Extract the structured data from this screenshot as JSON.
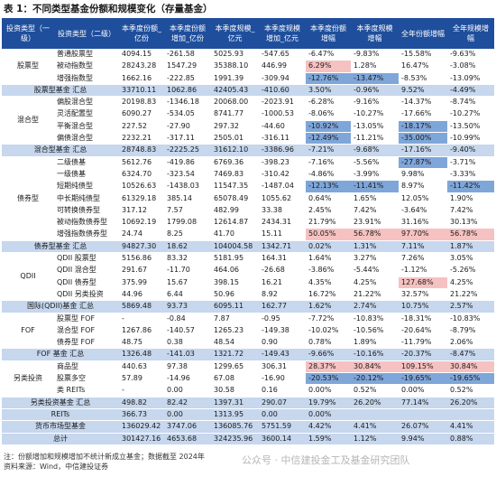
{
  "title": "表 1：不同类型基金份额和规模变化（存量基金）",
  "headers": [
    "投资类型（一级）",
    "投资类型（二级）",
    "本季度份额_亿份",
    "本季度份额增加_亿份",
    "本季度规模_亿元",
    "本季度规模增加_亿元",
    "本季度份额增幅",
    "本季度规模增幅",
    "全年份额增幅",
    "全年规模增幅"
  ],
  "rows": [
    {
      "type": "data",
      "cat": "股票型",
      "sub": "普通股票型",
      "v": [
        "4094.15",
        "-261.58",
        "5025.93",
        "-547.65",
        "-6.47%",
        "-9.83%",
        "-15.58%",
        "-9.63%"
      ],
      "hl": [
        "",
        "",
        "",
        "",
        "",
        "",
        "",
        ""
      ]
    },
    {
      "type": "data",
      "cat": "",
      "sub": "被动指数型",
      "v": [
        "28243.28",
        "1547.29",
        "35388.10",
        "446.99",
        "6.29%",
        "1.28%",
        "16.47%",
        "-3.08%"
      ],
      "hl": [
        "",
        "",
        "",
        "",
        "pos",
        "",
        "",
        ""
      ]
    },
    {
      "type": "data",
      "cat": "",
      "sub": "增强指数型",
      "v": [
        "1662.16",
        "-222.85",
        "1991.39",
        "-309.94",
        "-12.76%",
        "-13.47%",
        "-8.53%",
        "-13.09%"
      ],
      "hl": [
        "",
        "",
        "",
        "",
        "neg",
        "neg",
        "",
        ""
      ]
    },
    {
      "type": "total",
      "cat": "股票型基金 汇总",
      "sub": "",
      "v": [
        "33710.11",
        "1062.86",
        "42405.43",
        "-410.60",
        "3.50%",
        "-0.96%",
        "9.52%",
        "-4.49%"
      ],
      "hl": [
        "",
        "",
        "",
        "",
        "",
        "",
        "b",
        "b"
      ]
    },
    {
      "type": "data",
      "cat": "混合型",
      "sub": "偏股混合型",
      "v": [
        "20198.83",
        "-1346.18",
        "20068.00",
        "-2023.91",
        "-6.28%",
        "-9.16%",
        "-14.37%",
        "-8.74%"
      ],
      "hl": [
        "",
        "",
        "",
        "",
        "",
        "",
        "",
        ""
      ]
    },
    {
      "type": "data",
      "cat": "",
      "sub": "灵活配置型",
      "v": [
        "6090.27",
        "-534.05",
        "8741.77",
        "-1000.53",
        "-8.06%",
        "-10.27%",
        "-17.66%",
        "-10.27%"
      ],
      "hl": [
        "",
        "",
        "",
        "",
        "",
        "",
        "",
        ""
      ]
    },
    {
      "type": "data",
      "cat": "",
      "sub": "平衡混合型",
      "v": [
        "227.52",
        "-27.90",
        "297.32",
        "-44.60",
        "-10.92%",
        "-13.05%",
        "-18.17%",
        "-13.50%"
      ],
      "hl": [
        "",
        "",
        "",
        "",
        "neg",
        "",
        "neg",
        ""
      ]
    },
    {
      "type": "data",
      "cat": "",
      "sub": "偏债混合型",
      "v": [
        "2232.21",
        "-317.11",
        "2505.01",
        "-316.11",
        "-12.49%",
        "-11.21%",
        "-35.00%",
        "-10.99%"
      ],
      "hl": [
        "",
        "",
        "",
        "",
        "neg",
        "",
        "neg",
        ""
      ]
    },
    {
      "type": "total",
      "cat": "混合型基金 汇总",
      "sub": "",
      "v": [
        "28748.83",
        "-2225.25",
        "31612.10",
        "-3386.96",
        "-7.21%",
        "-9.68%",
        "-17.16%",
        "-9.40%"
      ],
      "hl": [
        "",
        "",
        "",
        "",
        "",
        "",
        "b",
        "b"
      ]
    },
    {
      "type": "data",
      "cat": "债券型",
      "sub": "二级债基",
      "v": [
        "5612.76",
        "-419.86",
        "6769.36",
        "-398.23",
        "-7.16%",
        "-5.56%",
        "-27.87%",
        "-3.71%"
      ],
      "hl": [
        "",
        "",
        "",
        "",
        "",
        "",
        "neg",
        ""
      ]
    },
    {
      "type": "data",
      "cat": "",
      "sub": "一级债基",
      "v": [
        "6324.70",
        "-323.54",
        "7469.83",
        "-310.42",
        "-4.86%",
        "-3.99%",
        "9.98%",
        "-3.33%"
      ],
      "hl": [
        "",
        "",
        "",
        "",
        "",
        "",
        "",
        ""
      ]
    },
    {
      "type": "data",
      "cat": "",
      "sub": "短期纯债型",
      "v": [
        "10526.63",
        "-1438.03",
        "11547.35",
        "-1487.04",
        "-12.13%",
        "-11.41%",
        "8.97%",
        "-11.42%"
      ],
      "hl": [
        "",
        "",
        "",
        "",
        "neg",
        "neg",
        "",
        "neg"
      ]
    },
    {
      "type": "data",
      "cat": "",
      "sub": "中长期纯债型",
      "v": [
        "61329.18",
        "385.14",
        "65078.49",
        "1055.62",
        "0.64%",
        "1.65%",
        "12.05%",
        "1.90%"
      ],
      "hl": [
        "",
        "",
        "",
        "",
        "",
        "",
        "",
        ""
      ]
    },
    {
      "type": "data",
      "cat": "",
      "sub": "可转换债券型",
      "v": [
        "317.12",
        "7.57",
        "482.99",
        "33.38",
        "2.45%",
        "7.42%",
        "-3.64%",
        "7.42%"
      ],
      "hl": [
        "",
        "",
        "",
        "",
        "",
        "",
        "",
        ""
      ]
    },
    {
      "type": "data",
      "cat": "",
      "sub": "被动指数债券型",
      "v": [
        "10692.19",
        "1799.08",
        "12614.87",
        "2434.31",
        "21.79%",
        "23.91%",
        "31.16%",
        "30.13%"
      ],
      "hl": [
        "",
        "",
        "",
        "",
        "",
        "",
        "",
        ""
      ]
    },
    {
      "type": "data",
      "cat": "",
      "sub": "增强指数债券型",
      "v": [
        "24.74",
        "8.25",
        "41.70",
        "15.11",
        "50.05%",
        "56.78%",
        "97.70%",
        "56.78%"
      ],
      "hl": [
        "",
        "",
        "",
        "",
        "pos",
        "pos",
        "pos",
        "pos"
      ]
    },
    {
      "type": "total",
      "cat": "债券型基金 汇总",
      "sub": "",
      "v": [
        "94827.30",
        "18.62",
        "104004.58",
        "1342.71",
        "0.02%",
        "1.31%",
        "7.11%",
        "1.87%"
      ],
      "hl": [
        "",
        "",
        "",
        "",
        "",
        "",
        "b",
        "b"
      ]
    },
    {
      "type": "data",
      "cat": "QDII",
      "sub": "QDII 股票型",
      "v": [
        "5156.86",
        "83.32",
        "5181.95",
        "164.31",
        "1.64%",
        "3.27%",
        "7.26%",
        "3.05%"
      ],
      "hl": [
        "",
        "",
        "",
        "",
        "",
        "",
        "",
        ""
      ]
    },
    {
      "type": "data",
      "cat": "",
      "sub": "QDII 混合型",
      "v": [
        "291.67",
        "-11.70",
        "464.06",
        "-26.68",
        "-3.86%",
        "-5.44%",
        "-1.12%",
        "-5.26%"
      ],
      "hl": [
        "",
        "",
        "",
        "",
        "",
        "",
        "",
        ""
      ]
    },
    {
      "type": "data",
      "cat": "",
      "sub": "QDII 债券型",
      "v": [
        "375.99",
        "15.67",
        "398.15",
        "16.21",
        "4.35%",
        "4.25%",
        "127.68%",
        "4.25%"
      ],
      "hl": [
        "",
        "",
        "",
        "",
        "",
        "",
        "pos",
        ""
      ]
    },
    {
      "type": "data",
      "cat": "",
      "sub": "QDII 另类投资",
      "v": [
        "44.96",
        "6.44",
        "50.96",
        "8.92",
        "16.72%",
        "21.22%",
        "32.57%",
        "21.22%"
      ],
      "hl": [
        "",
        "",
        "",
        "",
        "",
        "",
        "",
        ""
      ]
    },
    {
      "type": "total",
      "cat": "国际(QDII)基金 汇总",
      "sub": "",
      "v": [
        "5869.48",
        "93.73",
        "6095.11",
        "162.77",
        "1.62%",
        "2.74%",
        "10.75%",
        "2.57%"
      ],
      "hl": [
        "",
        "",
        "",
        "",
        "",
        "",
        "b",
        "b"
      ]
    },
    {
      "type": "data",
      "cat": "FOF",
      "sub": "股票型 FOF",
      "v": [
        "-",
        "-0.84",
        "7.87",
        "-0.95",
        "-7.72%",
        "-10.83%",
        "-18.31%",
        "-10.83%"
      ],
      "hl": [
        "",
        "",
        "",
        "",
        "",
        "",
        "",
        ""
      ]
    },
    {
      "type": "data",
      "cat": "",
      "sub": "混合型 FOF",
      "v": [
        "1267.86",
        "-140.57",
        "1265.23",
        "-149.38",
        "-10.02%",
        "-10.56%",
        "-20.64%",
        "-8.79%"
      ],
      "hl": [
        "",
        "",
        "",
        "",
        "",
        "",
        "",
        ""
      ]
    },
    {
      "type": "data",
      "cat": "",
      "sub": "债券型 FOF",
      "v": [
        "48.75",
        "0.38",
        "48.54",
        "0.90",
        "0.78%",
        "1.89%",
        "-11.79%",
        "2.06%"
      ],
      "hl": [
        "",
        "",
        "",
        "",
        "",
        "",
        "",
        ""
      ]
    },
    {
      "type": "total",
      "cat": "FOF 基金 汇总",
      "sub": "",
      "v": [
        "1326.48",
        "-141.03",
        "1321.72",
        "-149.43",
        "-9.66%",
        "-10.16%",
        "-20.37%",
        "-8.47%"
      ],
      "hl": [
        "",
        "",
        "",
        "",
        "",
        "",
        "b",
        "b"
      ]
    },
    {
      "type": "data",
      "cat": "另类投资",
      "sub": "商品型",
      "v": [
        "440.63",
        "97.38",
        "1299.65",
        "306.31",
        "28.37%",
        "30.84%",
        "109.15%",
        "30.84%"
      ],
      "hl": [
        "",
        "",
        "",
        "",
        "pos",
        "pos",
        "pos",
        "pos"
      ]
    },
    {
      "type": "data",
      "cat": "",
      "sub": "股票多空",
      "v": [
        "57.89",
        "-14.96",
        "67.08",
        "-16.90",
        "-20.53%",
        "-20.12%",
        "-19.65%",
        "-19.65%"
      ],
      "hl": [
        "",
        "",
        "",
        "",
        "neg",
        "neg",
        "neg",
        "neg"
      ]
    },
    {
      "type": "data",
      "cat": "",
      "sub": "类 REITs",
      "v": [
        "-",
        "0.00",
        "30.58",
        "0.16",
        "0.00%",
        "0.52%",
        "0.00%",
        "0.52%"
      ],
      "hl": [
        "",
        "",
        "",
        "",
        "",
        "",
        "",
        ""
      ]
    },
    {
      "type": "total",
      "cat": "另类投资基金 汇总",
      "sub": "",
      "v": [
        "498.82",
        "82.42",
        "1397.31",
        "290.07",
        "19.79%",
        "26.20%",
        "77.14%",
        "26.20%"
      ],
      "hl": [
        "",
        "",
        "",
        "",
        "",
        "",
        "b",
        "b"
      ]
    },
    {
      "type": "total",
      "cat": "REITs",
      "sub": "",
      "v": [
        "366.73",
        "0.00",
        "1313.95",
        "0.00",
        "0.00%",
        "",
        "",
        ""
      ],
      "hl": [
        "",
        "",
        "",
        "",
        "",
        "",
        "",
        ""
      ]
    },
    {
      "type": "total",
      "cat": "货币市场型基金",
      "sub": "",
      "v": [
        "136029.42",
        "3747.06",
        "136085.76",
        "5751.59",
        "4.42%",
        "4.41%",
        "26.07%",
        "4.41%"
      ],
      "hl": [
        "",
        "",
        "",
        "",
        "",
        "",
        "",
        ""
      ]
    },
    {
      "type": "total",
      "cat": "总计",
      "sub": "",
      "v": [
        "301427.16",
        "4653.68",
        "324235.96",
        "3600.14",
        "1.59%",
        "1.12%",
        "9.94%",
        "0.88%"
      ],
      "hl": [
        "",
        "",
        "",
        "",
        "",
        "",
        "b",
        "b"
      ]
    }
  ],
  "footnotes": [
    "注：份额增加和规模增加不统计新成立基金；数据截至 2024年",
    "资料来源：Wind，中信建投证券"
  ],
  "watermark": "公众号 · 中信建投金工及基金研究团队"
}
